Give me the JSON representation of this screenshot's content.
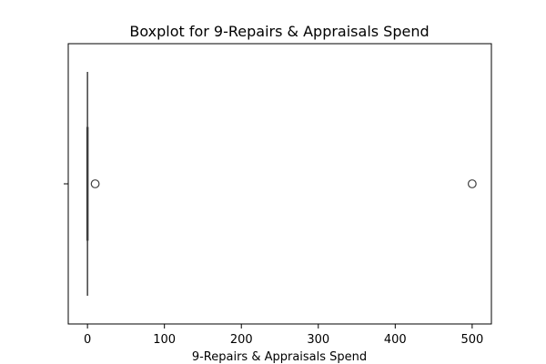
{
  "chart_data": {
    "type": "boxplot",
    "title": "Boxplot for 9-Repairs & Appraisals Spend",
    "xlabel": "9-Repairs & Appraisals Spend",
    "ylabel": "",
    "xlim": [
      -25,
      525
    ],
    "xticks": [
      0,
      100,
      200,
      300,
      400,
      500
    ],
    "xtick_labels": [
      "0",
      "100",
      "200",
      "300",
      "400",
      "500"
    ],
    "orientation": "horizontal",
    "box": {
      "whisker_low": 0,
      "q1": 0,
      "median": 0,
      "q3": 0,
      "whisker_high": 0
    },
    "outliers": [
      10,
      500
    ],
    "colors": {
      "box_edge": "#3f3f3f",
      "axes": "#000000"
    },
    "grid": false
  }
}
